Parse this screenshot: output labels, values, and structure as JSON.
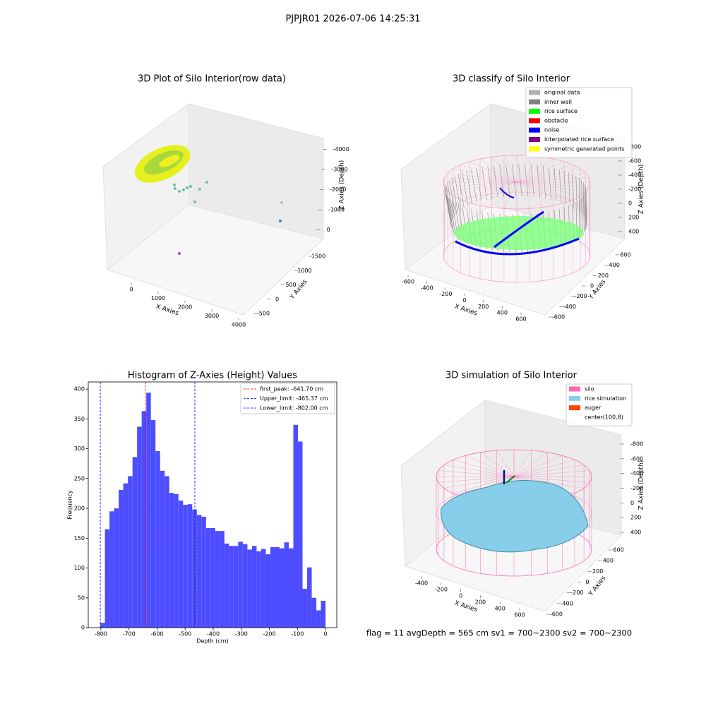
{
  "suptitle": "PJPJR01 2026-07-06 14:25:31",
  "footer": "flag = 11  avgDepth = 565 cm  sv1 = 700~2300  sv2 = 700~2300",
  "chart_data": [
    {
      "type": "scatter3d",
      "title": "3D Plot of Silo Interior(row data)",
      "xlabel": "X Axies",
      "ylabel": "Y Axies",
      "zlabel": "Z Axies (Depth)",
      "xlim": [
        -700,
        4300
      ],
      "ylim": [
        -700,
        1700
      ],
      "zlim": [
        -4500,
        300
      ],
      "xticks": [
        0,
        1000,
        2000,
        3000,
        4000
      ],
      "yticks": [
        -500,
        0,
        500,
        1000,
        1500
      ],
      "zticks": [
        0,
        -1000,
        -2000,
        -3000,
        -4000
      ]
    },
    {
      "type": "scatter3d",
      "title": "3D classify of Silo Interior",
      "xlabel": "X Axies",
      "ylabel": "Y Axies",
      "zlabel": "Z Axies (Depth)",
      "xlim": [
        -700,
        700
      ],
      "ylim": [
        -700,
        700
      ],
      "zlim": [
        -900,
        500
      ],
      "xticks": [
        -600,
        -400,
        -200,
        0,
        200,
        400,
        600
      ],
      "yticks": [
        -600,
        -400,
        -200,
        0,
        200,
        400,
        600
      ],
      "zticks": [
        400,
        200,
        0,
        -200,
        -400,
        -600,
        -800
      ],
      "legend": [
        {
          "name": "original data",
          "color": "#b0b0b0"
        },
        {
          "name": "inner wall",
          "color": "#808080"
        },
        {
          "name": "rice surface",
          "color": "#00ff00"
        },
        {
          "name": "obstacle",
          "color": "#ff0000"
        },
        {
          "name": "noise",
          "color": "#0000ff"
        },
        {
          "name": "interpolated rice surface",
          "color": "#800080"
        },
        {
          "name": "symmetric generated points",
          "color": "#ffff00"
        }
      ]
    },
    {
      "type": "histogram",
      "title": "Histogram of Z-Axies (Height) Values",
      "xlabel": "Depth (cm)",
      "ylabel": "Frequency",
      "color": "#4d4dff",
      "bins": [
        -802,
        -785.6,
        -769.3,
        -752.9,
        -736.5,
        -720.2,
        -703.8,
        -687.4,
        -671.1,
        -654.7,
        -638.3,
        -622.0,
        -605.6,
        -589.2,
        -572.9,
        -556.5,
        -540.1,
        -523.8,
        -507.4,
        -491.1,
        -474.7,
        -458.3,
        -442.0,
        -425.6,
        -409.2,
        -392.9,
        -376.5,
        -360.1,
        -343.8,
        -327.4,
        -311.0,
        -294.7,
        -278.3,
        -261.9,
        -245.6,
        -229.2,
        -212.8,
        -196.5,
        -180.1,
        -163.7,
        -147.3,
        -131.0,
        -114.6,
        -98.2,
        -81.9,
        -65.5,
        -49.1,
        -32.7,
        -16.4,
        0
      ],
      "values": [
        8,
        165,
        195,
        200,
        231,
        242,
        254,
        286,
        337,
        363,
        394,
        348,
        296,
        263,
        254,
        226,
        224,
        213,
        206,
        207,
        198,
        189,
        186,
        167,
        167,
        162,
        162,
        141,
        137,
        137,
        144,
        140,
        131,
        137,
        128,
        132,
        123,
        135,
        135,
        133,
        143,
        133,
        340,
        312,
        65,
        101,
        50,
        29,
        45
      ],
      "lines": [
        {
          "label": "first_peak: -641.70 cm",
          "value": -641.7,
          "color": "#ff0000"
        },
        {
          "label": "Upper_limit: -465.37 cm",
          "value": -465.37,
          "color": "#0000ff"
        },
        {
          "label": "Lower_limit: -802.00 cm",
          "value": -802.0,
          "color": "#0000ff"
        }
      ],
      "xlim": [
        -845,
        40
      ],
      "ylim": [
        0,
        412
      ],
      "xticks": [
        -800,
        -700,
        -600,
        -500,
        -400,
        -300,
        -200,
        -100,
        0
      ],
      "yticks": [
        0,
        50,
        100,
        150,
        200,
        250,
        300,
        350,
        400
      ]
    },
    {
      "type": "surface3d",
      "title": "3D simulation of Silo Interior",
      "xlabel": "X Axies",
      "ylabel": "Y Axies",
      "zlabel": "Z Axies (Depth)",
      "xlim": [
        -550,
        700
      ],
      "ylim": [
        -700,
        700
      ],
      "zlim": [
        -900,
        500
      ],
      "xticks": [
        -400,
        -200,
        0,
        200,
        400,
        600
      ],
      "yticks": [
        -600,
        -400,
        -200,
        0,
        200,
        400,
        600
      ],
      "zticks": [
        400,
        200,
        0,
        -200,
        -400,
        -600,
        -800
      ],
      "legend": [
        {
          "name": "silo",
          "color": "#ff69b4"
        },
        {
          "name": "rice simulation",
          "color": "#87ceeb"
        },
        {
          "name": "auger",
          "color": "#ff4500"
        },
        {
          "name": "center(100,8)",
          "color": "#ffffff"
        }
      ]
    }
  ]
}
